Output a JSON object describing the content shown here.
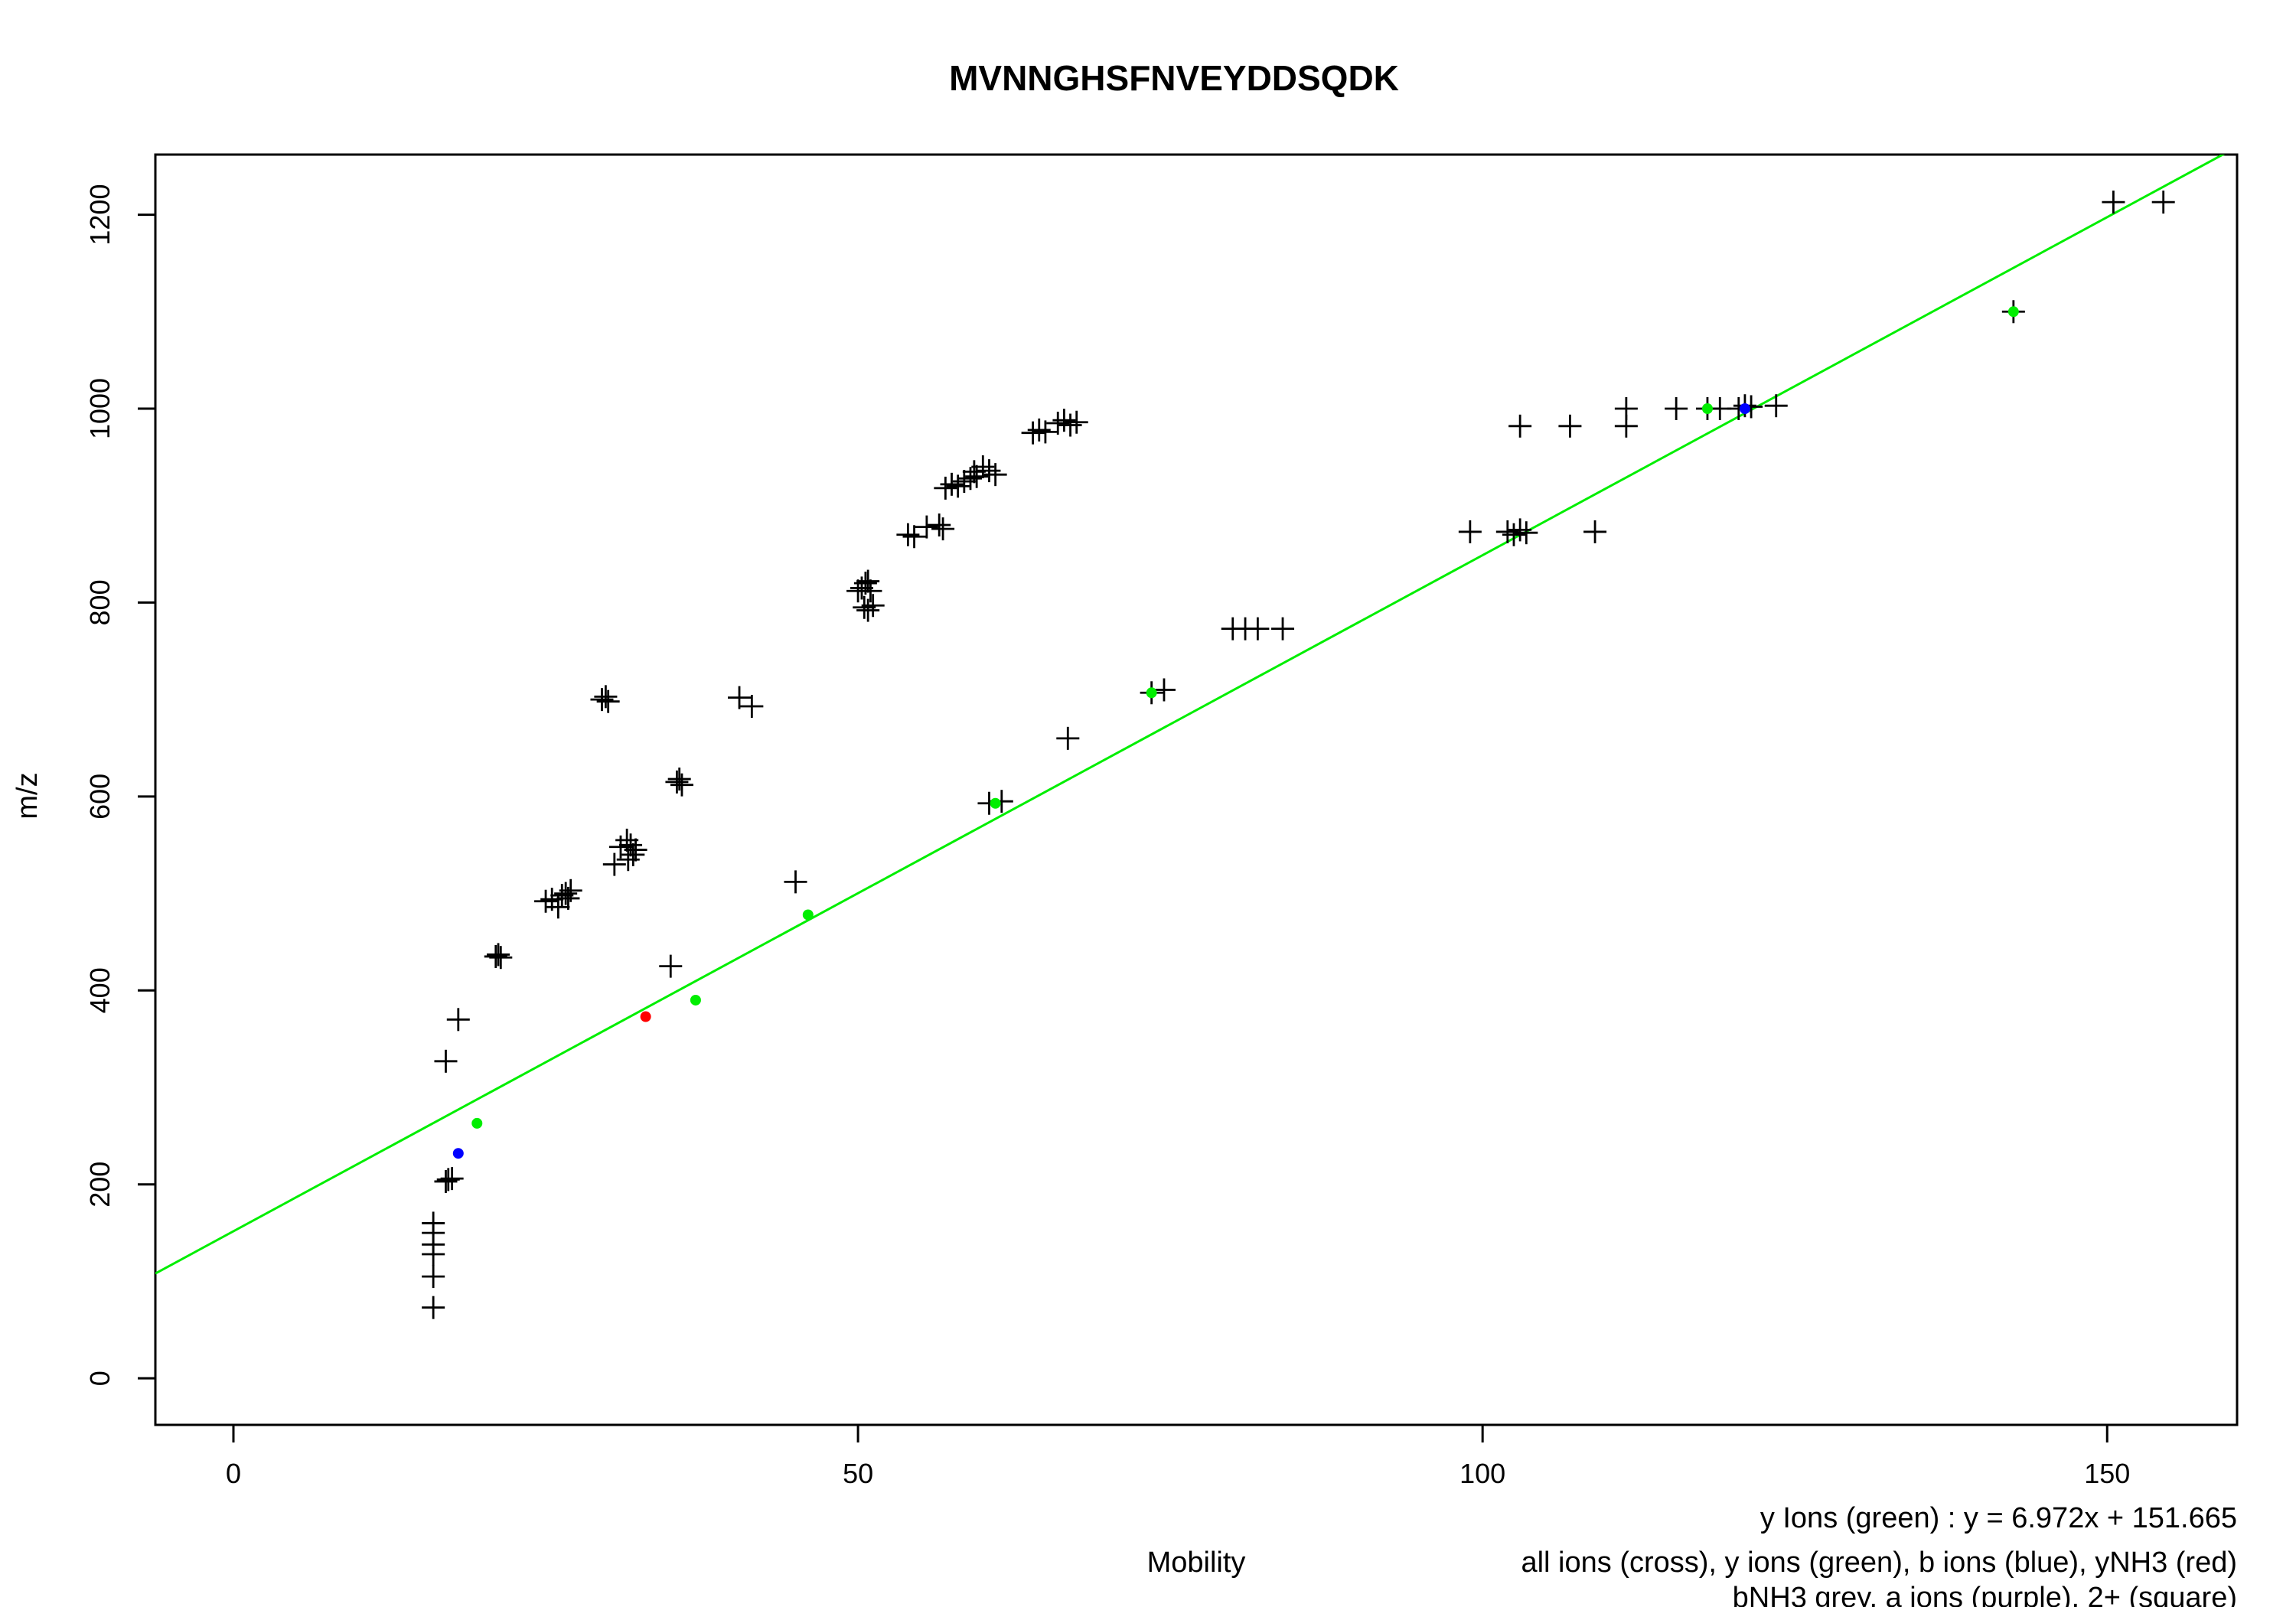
{
  "chart_data": {
    "type": "scatter",
    "title": "MVNNGHSFNVEYDDSQDK",
    "xlabel": "Mobility",
    "ylabel": "m/z",
    "xlim": [
      -6.25,
      160.4
    ],
    "ylim": [
      -48,
      1262
    ],
    "x_ticks": [
      0,
      50,
      100,
      150
    ],
    "y_ticks": [
      0,
      200,
      400,
      600,
      800,
      1000,
      1200
    ],
    "grid": false,
    "legend_lines": [
      "all ions (cross), y ions (green), b ions (blue), yNH3 (red)",
      "bNH3 grey, a ions (purple), 2+ (square)"
    ],
    "fit_label": "y Ions (green) : y = 6.972x + 151.665",
    "fit": {
      "name": "y Ions (green)",
      "slope": 6.972,
      "intercept": 151.665,
      "color": "#00ee00"
    },
    "colors": {
      "all": "#000000",
      "y": "#00ee00",
      "b": "#0000ff",
      "yNH3": "#ff0000"
    },
    "series": [
      {
        "kind": "all",
        "marker": "cross",
        "points": [
          [
            16,
            73
          ],
          [
            16,
            105
          ],
          [
            16,
            128
          ],
          [
            16,
            138
          ],
          [
            16,
            150
          ],
          [
            16,
            160
          ],
          [
            17,
            203
          ],
          [
            17.2,
            205
          ],
          [
            17.5,
            206
          ],
          [
            18,
            370
          ],
          [
            17,
            327
          ],
          [
            21,
            435
          ],
          [
            21.2,
            437
          ],
          [
            21.4,
            434
          ],
          [
            25,
            492
          ],
          [
            25.5,
            494
          ],
          [
            26,
            486
          ],
          [
            26.3,
            498
          ],
          [
            26.6,
            500
          ],
          [
            27,
            503
          ],
          [
            26.8,
            495
          ],
          [
            29.5,
            700
          ],
          [
            29.8,
            703
          ],
          [
            30,
            698
          ],
          [
            30.5,
            530
          ],
          [
            31,
            548
          ],
          [
            31.5,
            555
          ],
          [
            31.8,
            550
          ],
          [
            32,
            540
          ],
          [
            32.2,
            545
          ],
          [
            31.6,
            535
          ],
          [
            35,
            425
          ],
          [
            35.5,
            615
          ],
          [
            35.7,
            618
          ],
          [
            35.9,
            612
          ],
          [
            40.5,
            702
          ],
          [
            41.5,
            693
          ],
          [
            45,
            512
          ],
          [
            50,
            812
          ],
          [
            50.3,
            815
          ],
          [
            50.6,
            820
          ],
          [
            50.8,
            822
          ],
          [
            51,
            812
          ],
          [
            50.5,
            795
          ],
          [
            50.8,
            792
          ],
          [
            51.2,
            797
          ],
          [
            54,
            870
          ],
          [
            54.5,
            868
          ],
          [
            55.5,
            878
          ],
          [
            56.5,
            880
          ],
          [
            56.8,
            876
          ],
          [
            57,
            918
          ],
          [
            57.5,
            922
          ],
          [
            58,
            920
          ],
          [
            58.5,
            925
          ],
          [
            59,
            928
          ],
          [
            59.3,
            935
          ],
          [
            59.5,
            930
          ],
          [
            60,
            940
          ],
          [
            60.5,
            936
          ],
          [
            61,
            932
          ],
          [
            60.5,
            593
          ],
          [
            61.5,
            595
          ],
          [
            64,
            975
          ],
          [
            64.5,
            978
          ],
          [
            65,
            976
          ],
          [
            66,
            985
          ],
          [
            66.5,
            988
          ],
          [
            67,
            983
          ],
          [
            67.5,
            986
          ],
          [
            66.8,
            660
          ],
          [
            73.5,
            707
          ],
          [
            74.5,
            710
          ],
          [
            80,
            773
          ],
          [
            81,
            773
          ],
          [
            82,
            773
          ],
          [
            84,
            773
          ],
          [
            99,
            873
          ],
          [
            102,
            873
          ],
          [
            102.5,
            870
          ],
          [
            103,
            875
          ],
          [
            103.5,
            872
          ],
          [
            109,
            873
          ],
          [
            103,
            982
          ],
          [
            107,
            982
          ],
          [
            111.5,
            982
          ],
          [
            111.5,
            1000
          ],
          [
            115.5,
            1000
          ],
          [
            118,
            1000
          ],
          [
            119,
            1000
          ],
          [
            120.5,
            1000
          ],
          [
            121,
            1003
          ],
          [
            121.5,
            1002
          ],
          [
            123.5,
            1003
          ],
          [
            150.5,
            1213
          ],
          [
            154.5,
            1213
          ],
          [
            142.5,
            1100
          ]
        ]
      },
      {
        "kind": "y",
        "marker": "dot",
        "points": [
          [
            19.5,
            263
          ],
          [
            37,
            390
          ],
          [
            46,
            478
          ],
          [
            61,
            593
          ],
          [
            73.5,
            707
          ],
          [
            118,
            1000
          ],
          [
            142.5,
            1100
          ]
        ]
      },
      {
        "kind": "b",
        "marker": "dot",
        "points": [
          [
            18,
            232
          ],
          [
            121,
            1000
          ]
        ]
      },
      {
        "kind": "yNH3",
        "marker": "dot",
        "points": [
          [
            33,
            373
          ]
        ]
      }
    ]
  }
}
